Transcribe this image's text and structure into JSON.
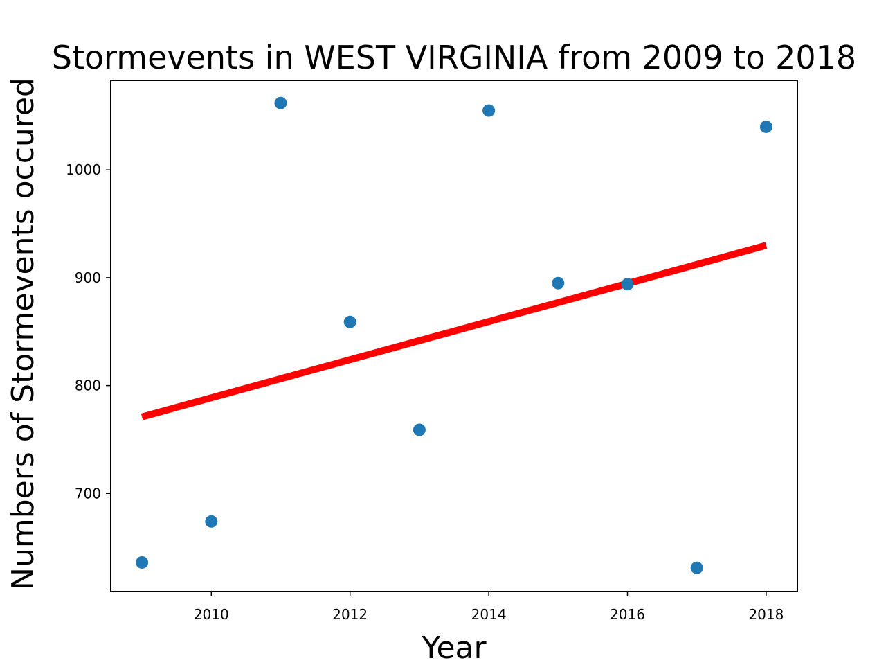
{
  "chart_data": {
    "type": "scatter",
    "title": "Stormevents in WEST VIRGINIA from 2009 to 2018",
    "xlabel": "Year",
    "ylabel": "Numbers of Stormevents occured",
    "xlim": [
      2008.55,
      2018.45
    ],
    "ylim": [
      609,
      1083
    ],
    "xticks": [
      2010,
      2012,
      2014,
      2016,
      2018
    ],
    "yticks": [
      700,
      800,
      900,
      1000
    ],
    "grid": false,
    "series": [
      {
        "type": "scatter",
        "color": "#1f77b4",
        "x": [
          2009,
          2010,
          2011,
          2012,
          2013,
          2014,
          2015,
          2016,
          2017,
          2018
        ],
        "y": [
          636,
          674,
          1062,
          859,
          759,
          1055,
          895,
          894,
          631,
          1040
        ]
      },
      {
        "type": "line",
        "color": "#ff0000",
        "x": [
          2009,
          2018
        ],
        "y": [
          771,
          930
        ]
      }
    ]
  }
}
